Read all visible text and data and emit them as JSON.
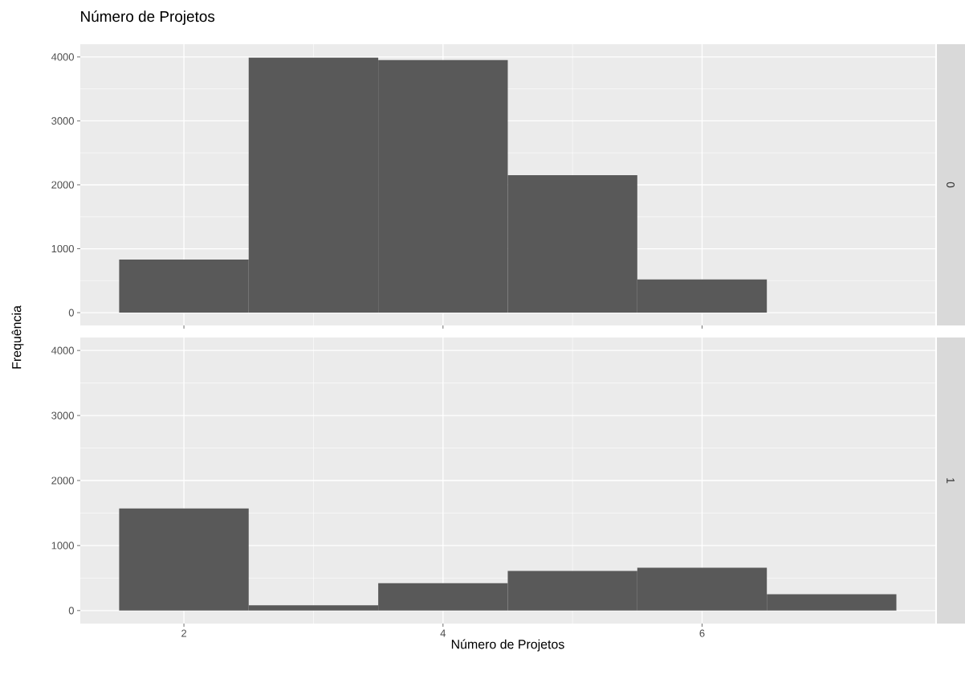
{
  "chart_data": [
    {
      "type": "histogram",
      "title": "Número de Projetos",
      "ylabel": "Frequência",
      "annotations": [
        "0"
      ],
      "bins": [
        1.5,
        2.5,
        3.5,
        4.5,
        5.5,
        6.5,
        7.5
      ],
      "values": [
        830,
        3990,
        3950,
        2150,
        520,
        0
      ],
      "color": "#595959",
      "xlim": [
        1.2,
        7.8
      ],
      "ylim": [
        -200,
        4200
      ],
      "xticks": [
        2,
        4,
        6
      ],
      "yticks": [
        0,
        1000,
        2000,
        3000,
        4000
      ],
      "grid": true,
      "tick_labels": "y"
    },
    {
      "type": "histogram",
      "xlabel": "Número de Projetos",
      "annotations": [
        "1"
      ],
      "bins": [
        1.5,
        2.5,
        3.5,
        4.5,
        5.5,
        6.5,
        7.5
      ],
      "values": [
        1570,
        80,
        420,
        610,
        660,
        250
      ],
      "color": "#595959",
      "xlim": [
        1.2,
        7.8
      ],
      "ylim": [
        -200,
        4200
      ],
      "xticks": [
        2,
        4,
        6
      ],
      "yticks": [
        0,
        1000,
        2000,
        3000,
        4000
      ],
      "grid": true
    }
  ]
}
